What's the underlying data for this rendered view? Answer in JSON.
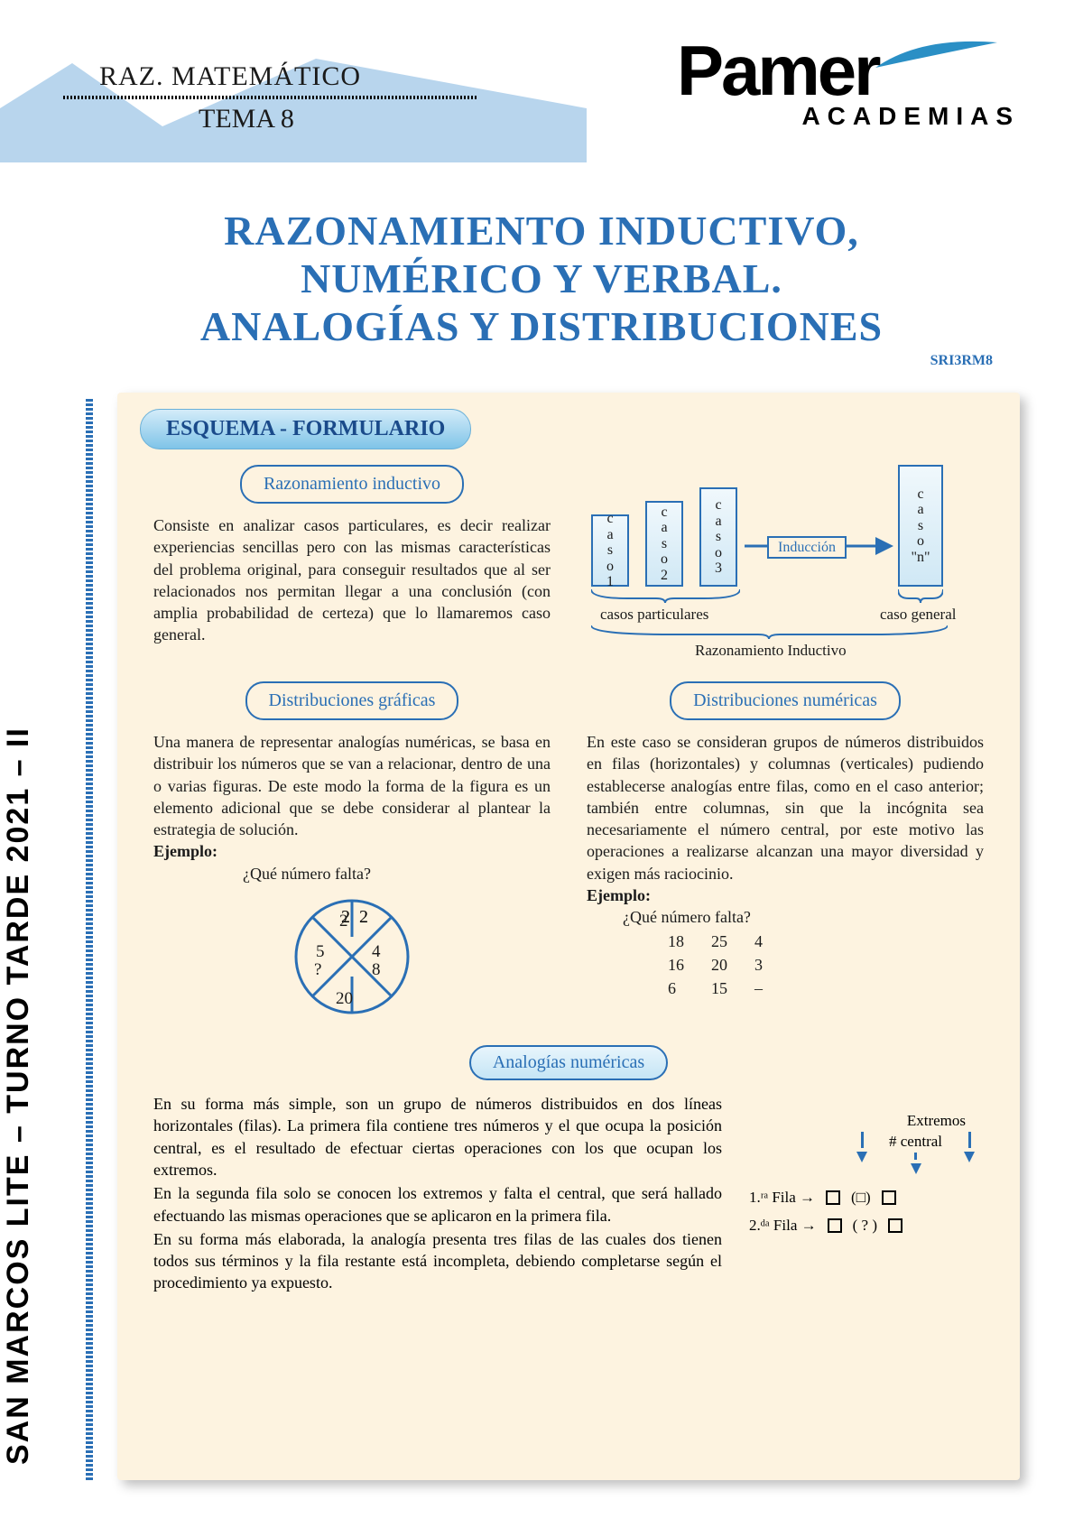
{
  "header": {
    "subject": "RAZ. MATEMÁTICO",
    "tema": "TEMA 8",
    "logo_name": "Pamer",
    "logo_sub": "ACADEMIAS"
  },
  "colors": {
    "mountain": "#b8d5ed",
    "accent": "#2a6fb5",
    "card_bg": "#fdf3e0",
    "pill_grad_top": "#d4ecf9",
    "pill_grad_bot": "#7fc4e8",
    "logo_swoosh": "#2a8fc5"
  },
  "title": {
    "line1": "RAZONAMIENTO INDUCTIVO,",
    "line2": "NUMÉRICO Y VERBAL.",
    "line3": "ANALOGÍAS Y DISTRIBUCIONES",
    "code": "SRI3RM8"
  },
  "sidebar": "SAN MARCOS LITE – TURNO TARDE 2021 – II",
  "card": {
    "header": "ESQUEMA - FORMULARIO",
    "section1": {
      "pill": "Razonamiento inductivo",
      "body": "Consiste en analizar casos particulares, es decir realizar experiencias sencillas pero con las mismas características del problema original, para conseguir resultados que al ser relacionados nos permitan llegar a una conclusión (con amplia probabilidad de certeza) que lo llamaremos caso general."
    },
    "induction": {
      "boxes": [
        "caso 1",
        "caso 2",
        "caso 3",
        "caso \"n\""
      ],
      "arrow_label": "Inducción",
      "brace_left": "casos particulares",
      "brace_right": "caso general",
      "full_label": "Razonamiento Inductivo"
    },
    "section2": {
      "pill": "Distribuciones gráficas",
      "body": "Una manera de representar analogías numéricas, se basa en distribuir los números que se van a relacionar, dentro de una o varias figuras. De este modo la forma de la figura es un elemento adicional que se debe considerar al plantear la estrategia de solución.",
      "ejemplo_label": "Ejemplo:",
      "ejemplo_q": "¿Qué número falta?",
      "circle_values": [
        "2",
        "4",
        "8",
        "20",
        "?",
        "5"
      ]
    },
    "section3": {
      "pill": "Distribuciones numéricas",
      "body": "En este caso se consideran grupos de números distribuidos en filas (horizontales) y columnas (verticales) pudiendo establecerse analogías entre filas, como en el caso anterior; también entre columnas, sin que la incógnita sea necesariamente el número central, por este motivo las operaciones a realizarse alcanzan una mayor diversidad y exigen más raciocinio.",
      "ejemplo_label": "Ejemplo:",
      "ejemplo_q": "¿Qué número falta?",
      "table": [
        [
          "18",
          "25",
          "4"
        ],
        [
          "16",
          "20",
          "3"
        ],
        [
          "6",
          "15",
          "–"
        ]
      ]
    },
    "section4": {
      "pill": "Analogías numéricas",
      "body": "En su forma más simple, son un grupo de números distribuidos en dos líneas horizontales (filas). La primera fila contiene tres números y el que ocupa la posición central, es el resultado de efectuar ciertas operaciones con los que ocupan los extremos.\nEn la segunda fila solo se conocen los extremos y falta el central, que será hallado efectuando las mismas operaciones que se aplicaron en la primera fila.\nEn su forma más elaborada, la analogía presenta tres filas de las cuales dos tienen todos sus términos y la fila restante está incompleta, debiendo completarse según el procedimiento ya expuesto.",
      "diagram": {
        "header1": "Extremos",
        "header2": "# central",
        "row1_label": "1.ʳᵃ Fila →",
        "row1_mid": "(□)",
        "row2_label": "2.ᵈᵃ Fila →",
        "row2_mid": "( ? )"
      }
    }
  }
}
